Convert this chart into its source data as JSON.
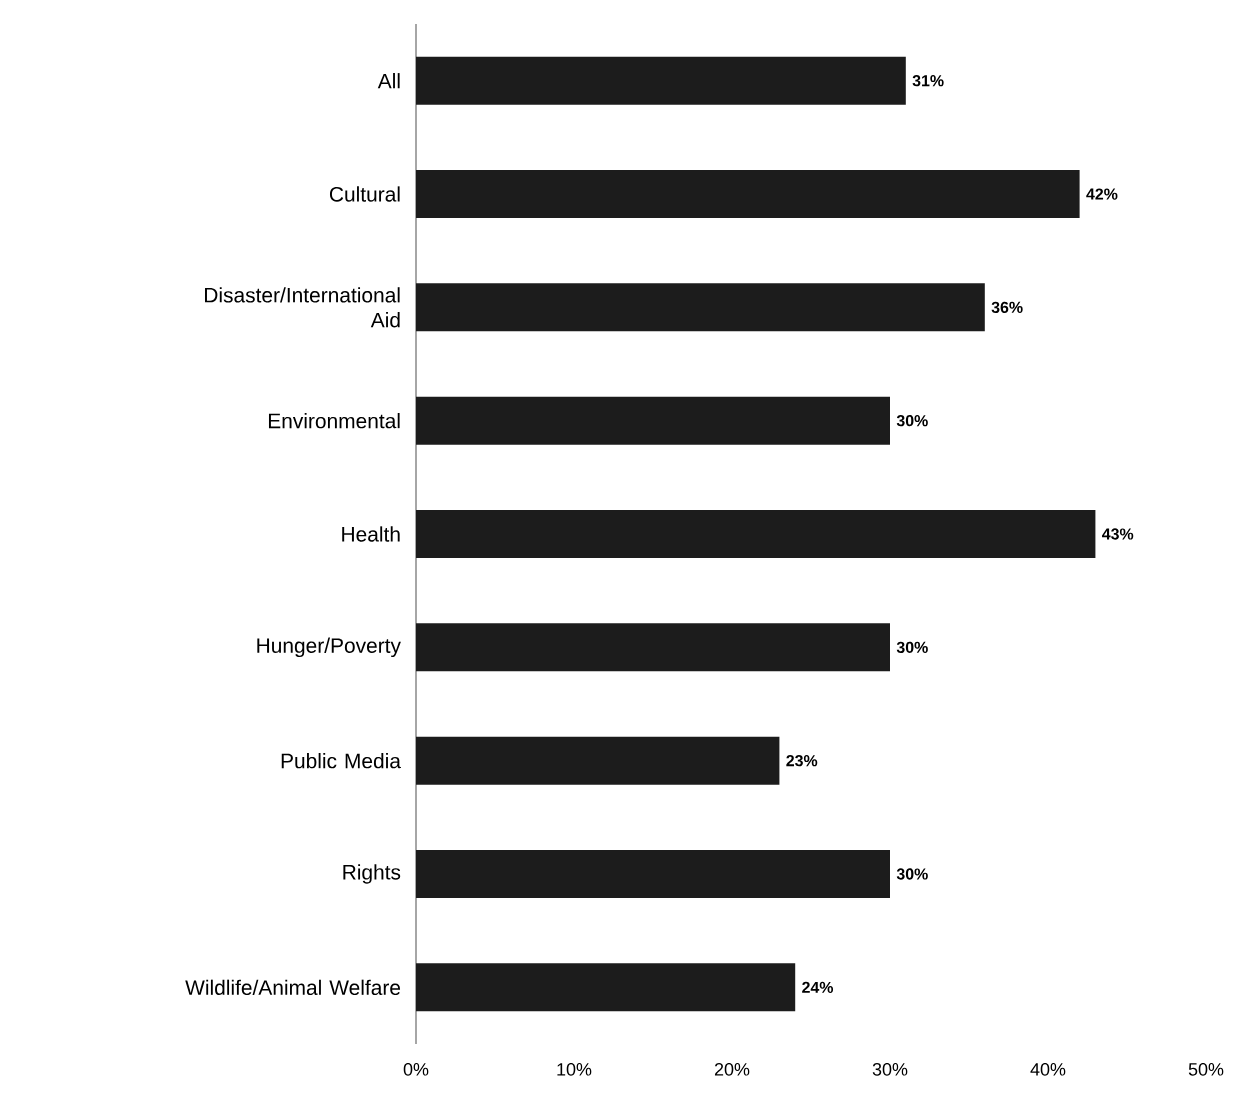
{
  "chart_data": {
    "type": "bar",
    "orientation": "horizontal",
    "categories": [
      "All",
      "Cultural",
      "Disaster/International Aid",
      "Environmental",
      "Health",
      "Hunger/Poverty",
      "Public Media",
      "Rights",
      "Wildlife/Animal Welfare"
    ],
    "values": [
      31,
      42,
      36,
      30,
      43,
      30,
      23,
      30,
      24
    ],
    "value_labels": [
      "31%",
      "42%",
      "36%",
      "30%",
      "43%",
      "30%",
      "23%",
      "30%",
      "24%"
    ],
    "color": "#1c1c1c",
    "xlim": [
      0,
      50
    ],
    "xticks": [
      {
        "value": 0,
        "label": "0%"
      },
      {
        "value": 10,
        "label": "10%"
      },
      {
        "value": 20,
        "label": "20%"
      },
      {
        "value": 30,
        "label": "30%"
      },
      {
        "value": 40,
        "label": "40%"
      },
      {
        "value": 50,
        "label": "50%"
      }
    ],
    "grid": false
  }
}
